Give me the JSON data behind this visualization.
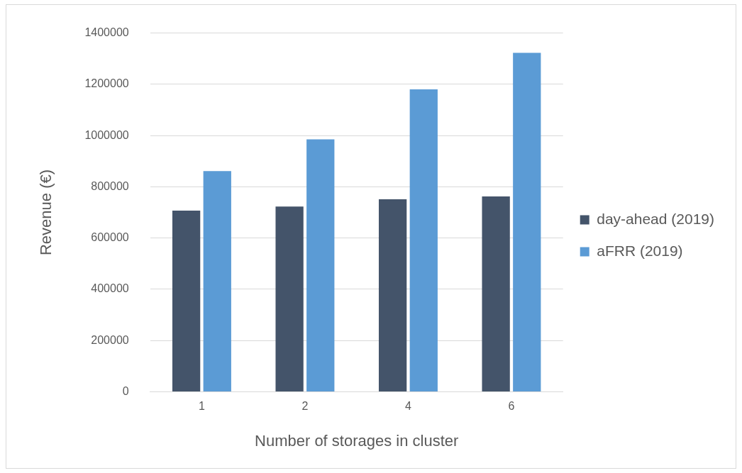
{
  "chart_data": {
    "type": "bar",
    "xlabel": "Number of storages in cluster",
    "ylabel": "Revenue (€)",
    "categories": [
      "1",
      "2",
      "4",
      "6"
    ],
    "series": [
      {
        "name": "day-ahead (2019)",
        "color": "#44546a",
        "values": [
          707000,
          723000,
          751000,
          762000
        ]
      },
      {
        "name": "aFRR (2019)",
        "color": "#5b9bd5",
        "values": [
          861000,
          985000,
          1180000,
          1323000
        ]
      }
    ],
    "ylim": [
      0,
      1400000
    ],
    "yticks": [
      0,
      200000,
      400000,
      600000,
      800000,
      1000000,
      1200000,
      1400000
    ],
    "grid": "y",
    "legend": "right"
  }
}
